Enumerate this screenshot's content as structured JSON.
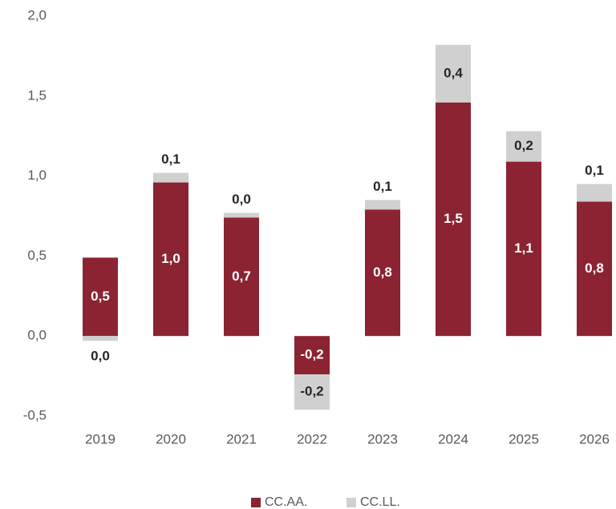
{
  "chart_data": {
    "type": "stacked_bar",
    "categories": [
      "2019",
      "2020",
      "2021",
      "2022",
      "2023",
      "2024",
      "2025",
      "2026"
    ],
    "series": [
      {
        "name": "CC.AA.",
        "color": "#8b2332",
        "values": [
          0.49,
          0.96,
          0.74,
          -0.24,
          0.79,
          1.46,
          1.09,
          0.84
        ],
        "value_labels": [
          "0,5",
          "1,0",
          "0,7",
          "-0,2",
          "0,8",
          "1,5",
          "1,1",
          "0,8"
        ]
      },
      {
        "name": "CC.LL.",
        "color": "#d0d0d0",
        "values": [
          -0.03,
          0.06,
          0.03,
          -0.22,
          0.06,
          0.36,
          0.19,
          0.11
        ],
        "value_labels": [
          "0,0",
          "0,1",
          "0,0",
          "-0,2",
          "0,1",
          "0,4",
          "0,2",
          "0,1"
        ]
      }
    ],
    "ylim": [
      -0.5,
      2.0
    ],
    "yticks": [
      {
        "value": -0.5,
        "label": "-0,5"
      },
      {
        "value": 0,
        "label": "0,0"
      },
      {
        "value": 0.5,
        "label": "0,5"
      },
      {
        "value": 1.0,
        "label": "1,0"
      },
      {
        "value": 1.5,
        "label": "1,5"
      },
      {
        "value": 2.0,
        "label": "2,0"
      }
    ],
    "legend": "bottom"
  }
}
